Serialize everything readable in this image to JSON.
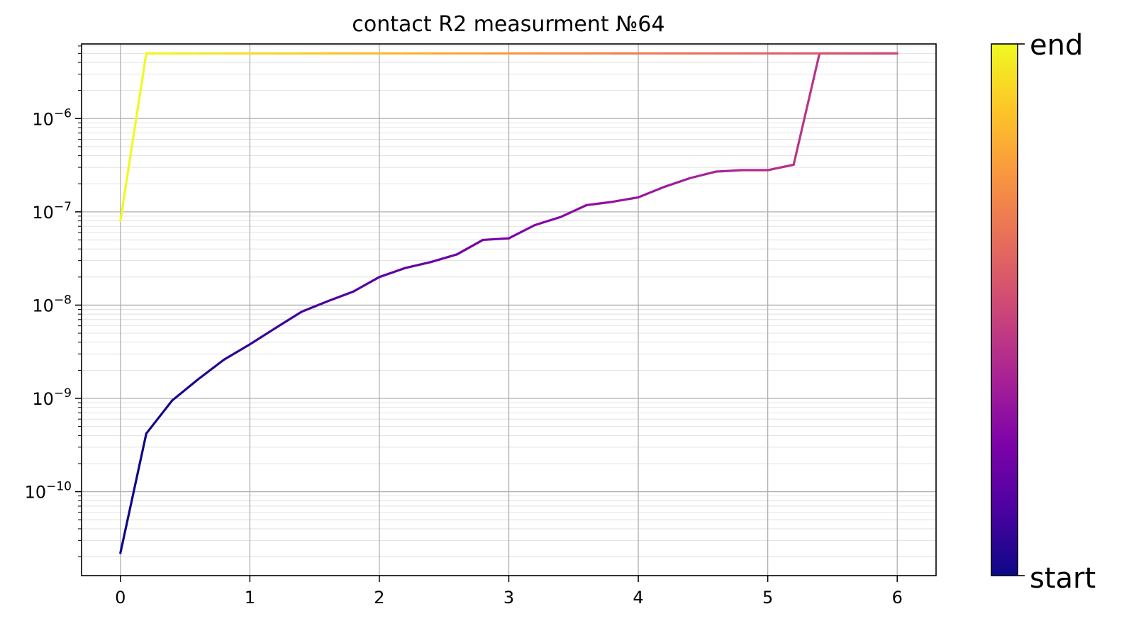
{
  "chart_data": {
    "type": "line",
    "title": "contact R2 measurment №64",
    "xlabel": "",
    "ylabel": "",
    "xlim": [
      -0.3,
      6.3
    ],
    "ylim_log10": [
      -10.9,
      -5.2
    ],
    "yscale": "log",
    "grid": true,
    "x_ticks": [
      {
        "value": 0,
        "label": "0"
      },
      {
        "value": 1,
        "label": "1"
      },
      {
        "value": 2,
        "label": "2"
      },
      {
        "value": 3,
        "label": "3"
      },
      {
        "value": 4,
        "label": "4"
      },
      {
        "value": 5,
        "label": "5"
      },
      {
        "value": 6,
        "label": "6"
      }
    ],
    "y_ticks": [
      {
        "exp": -6,
        "base": "10",
        "sup": "−6"
      },
      {
        "exp": -7,
        "base": "10",
        "sup": "−7"
      },
      {
        "exp": -8,
        "base": "10",
        "sup": "−8"
      },
      {
        "exp": -9,
        "base": "10",
        "sup": "−9"
      },
      {
        "exp": -10,
        "base": "10",
        "sup": "−10"
      }
    ],
    "colormap": "plasma",
    "colorbar": {
      "top_label": "end",
      "bottom_label": "start"
    },
    "series": [
      {
        "x": [
          0,
          0.2,
          0.4,
          0.6,
          0.8,
          1.0,
          1.2,
          1.4,
          1.6,
          1.8,
          2.0,
          2.2,
          2.4,
          2.6,
          2.8,
          3.0,
          3.2,
          3.4,
          3.6,
          3.8,
          4.0,
          4.2,
          4.4,
          4.6,
          4.8,
          5.0,
          5.2,
          5.4,
          5.6,
          5.8,
          6.0
        ],
        "y": [
          2.2e-11,
          4.2e-10,
          9.5e-10,
          1.6e-09,
          2.6e-09,
          3.8e-09,
          5.7e-09,
          8.5e-09,
          1.1e-08,
          1.4e-08,
          2e-08,
          2.5e-08,
          2.9e-08,
          3.5e-08,
          5e-08,
          5.2e-08,
          7.2e-08,
          8.8e-08,
          1.18e-07,
          1.28e-07,
          1.43e-07,
          1.85e-07,
          2.3e-07,
          2.7e-07,
          2.8e-07,
          2.8e-07,
          3.2e-07,
          5e-06,
          5e-06,
          5e-06,
          5e-06
        ]
      },
      {
        "x": [
          6.0,
          5.8,
          5.6,
          5.4,
          5.2,
          5.0,
          4.8,
          4.6,
          4.4,
          4.2,
          4.0,
          3.8,
          3.6,
          3.4,
          3.2,
          3.0,
          2.8,
          2.6,
          2.4,
          2.2,
          2.0,
          1.8,
          1.6,
          1.4,
          1.2,
          1.0,
          0.8,
          0.6,
          0.4,
          0.2,
          0
        ],
        "y": [
          5e-06,
          5e-06,
          5e-06,
          5e-06,
          5e-06,
          5e-06,
          5e-06,
          5e-06,
          5e-06,
          5e-06,
          5e-06,
          5e-06,
          5e-06,
          5e-06,
          5e-06,
          5e-06,
          5e-06,
          5e-06,
          5e-06,
          5e-06,
          5e-06,
          5e-06,
          5e-06,
          5e-06,
          5e-06,
          5e-06,
          5e-06,
          5e-06,
          5e-06,
          5e-06,
          8e-08
        ]
      }
    ]
  }
}
